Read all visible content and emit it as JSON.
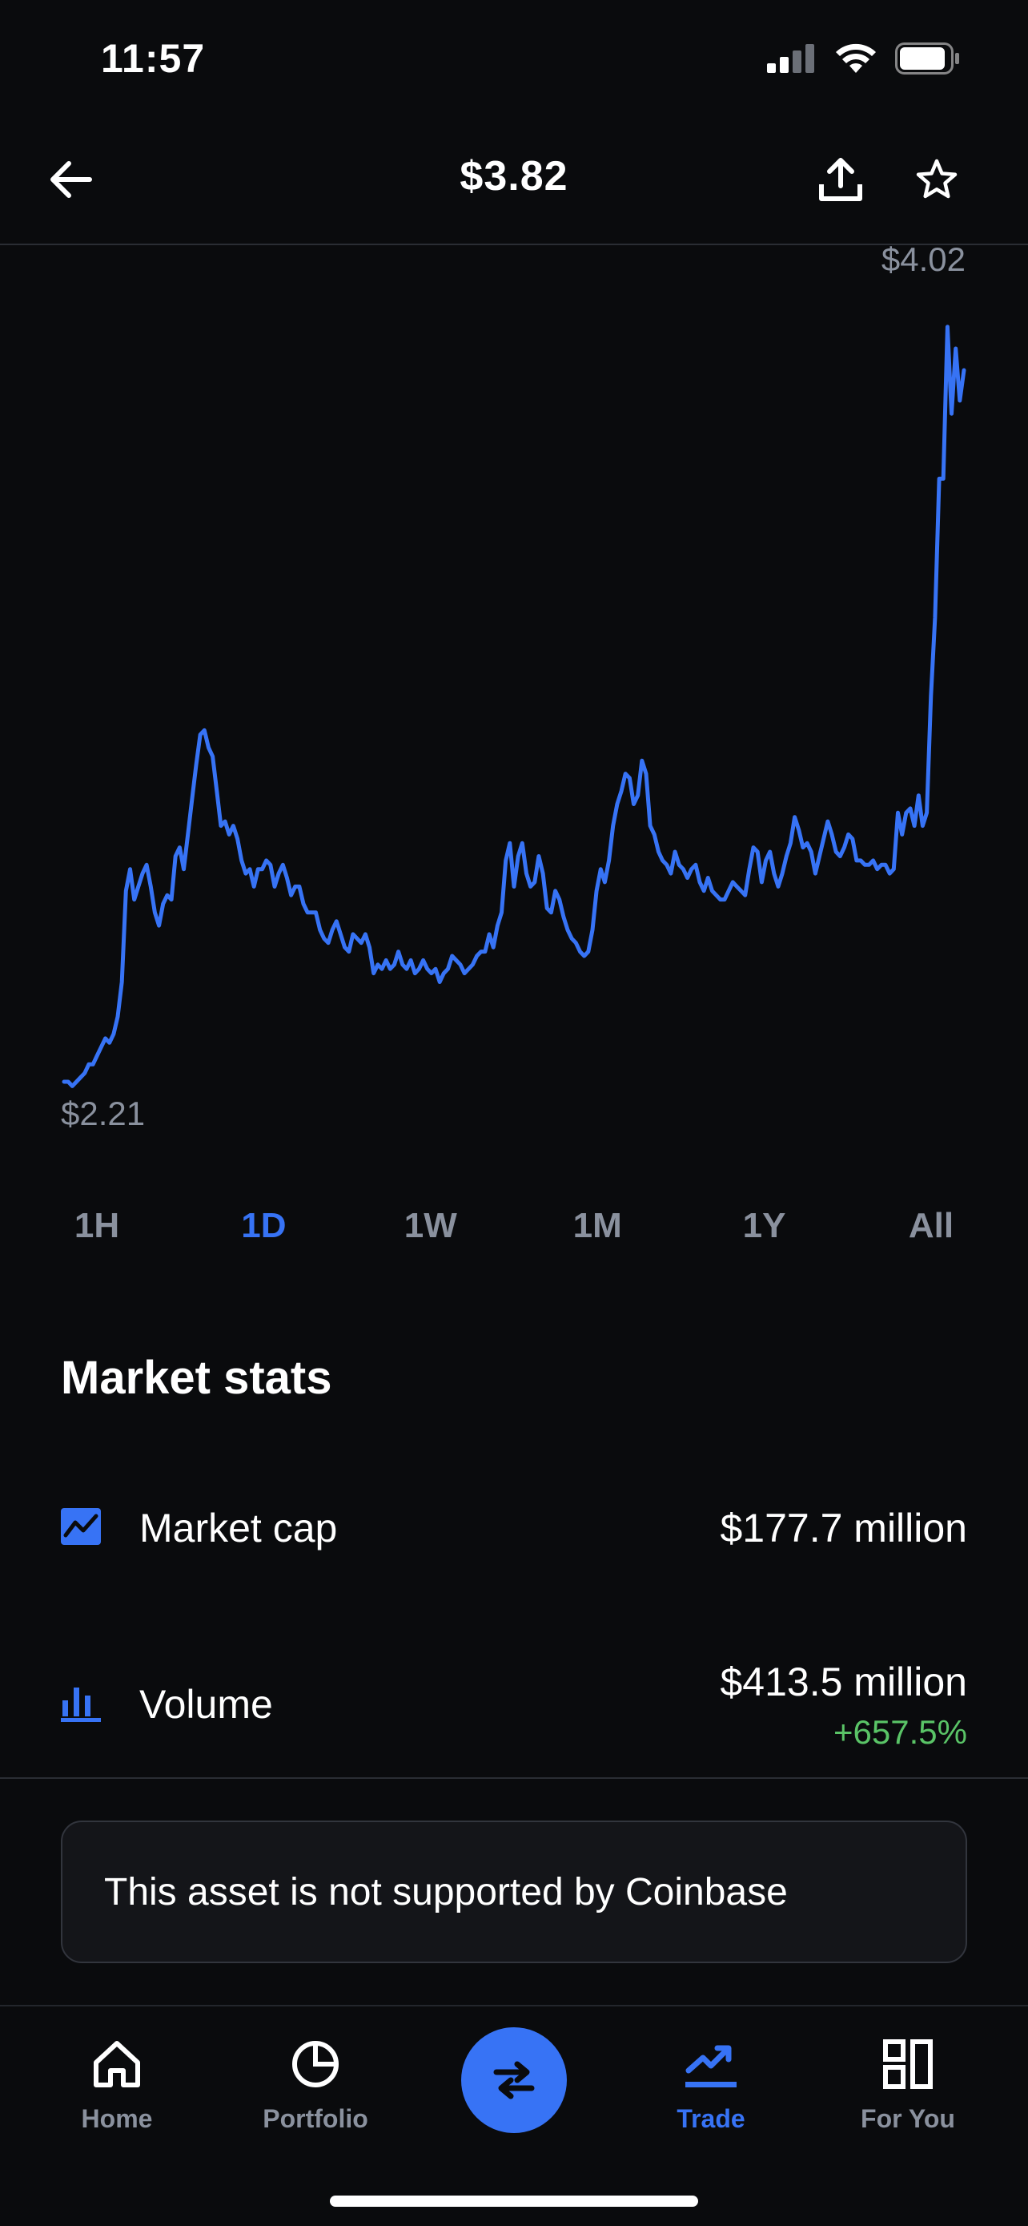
{
  "status_bar": {
    "time": "11:57",
    "icons": [
      "signal-icon",
      "wifi-icon",
      "battery-icon"
    ]
  },
  "header": {
    "price": "$3.82",
    "icons": [
      "back-arrow-icon",
      "share-icon",
      "star-icon"
    ]
  },
  "chart_data": {
    "type": "line",
    "high_label": "$4.02",
    "low_label": "$2.21",
    "ylim": [
      2.21,
      4.02
    ],
    "color": "#3773f5",
    "y": [
      2.21,
      2.21,
      2.2,
      2.21,
      2.22,
      2.23,
      2.25,
      2.25,
      2.27,
      2.29,
      2.31,
      2.3,
      2.32,
      2.36,
      2.44,
      2.65,
      2.7,
      2.63,
      2.66,
      2.69,
      2.71,
      2.66,
      2.6,
      2.57,
      2.62,
      2.64,
      2.63,
      2.73,
      2.75,
      2.7,
      2.78,
      2.86,
      2.94,
      3.01,
      3.02,
      2.98,
      2.96,
      2.88,
      2.8,
      2.81,
      2.78,
      2.8,
      2.77,
      2.72,
      2.69,
      2.7,
      2.66,
      2.7,
      2.7,
      2.72,
      2.71,
      2.66,
      2.69,
      2.71,
      2.68,
      2.64,
      2.66,
      2.66,
      2.62,
      2.6,
      2.6,
      2.6,
      2.56,
      2.54,
      2.53,
      2.56,
      2.58,
      2.55,
      2.52,
      2.51,
      2.55,
      2.54,
      2.53,
      2.55,
      2.52,
      2.46,
      2.48,
      2.47,
      2.49,
      2.47,
      2.48,
      2.51,
      2.48,
      2.47,
      2.49,
      2.46,
      2.47,
      2.49,
      2.47,
      2.46,
      2.47,
      2.44,
      2.46,
      2.47,
      2.5,
      2.49,
      2.48,
      2.46,
      2.47,
      2.48,
      2.5,
      2.51,
      2.51,
      2.55,
      2.52,
      2.57,
      2.6,
      2.72,
      2.76,
      2.66,
      2.73,
      2.76,
      2.69,
      2.66,
      2.67,
      2.73,
      2.69,
      2.61,
      2.6,
      2.65,
      2.63,
      2.59,
      2.56,
      2.54,
      2.53,
      2.51,
      2.5,
      2.51,
      2.56,
      2.65,
      2.7,
      2.67,
      2.72,
      2.8,
      2.85,
      2.88,
      2.92,
      2.91,
      2.85,
      2.87,
      2.95,
      2.92,
      2.8,
      2.78,
      2.74,
      2.72,
      2.71,
      2.69,
      2.74,
      2.71,
      2.7,
      2.68,
      2.7,
      2.71,
      2.67,
      2.65,
      2.68,
      2.65,
      2.64,
      2.63,
      2.63,
      2.65,
      2.67,
      2.66,
      2.65,
      2.64,
      2.7,
      2.75,
      2.74,
      2.67,
      2.72,
      2.74,
      2.69,
      2.66,
      2.69,
      2.73,
      2.76,
      2.82,
      2.79,
      2.75,
      2.76,
      2.74,
      2.69,
      2.73,
      2.77,
      2.81,
      2.78,
      2.74,
      2.73,
      2.75,
      2.78,
      2.77,
      2.72,
      2.72,
      2.71,
      2.71,
      2.72,
      2.7,
      2.71,
      2.71,
      2.69,
      2.7,
      2.83,
      2.78,
      2.83,
      2.84,
      2.8,
      2.87,
      2.8,
      2.83,
      3.1,
      3.28,
      3.6,
      3.6,
      3.95,
      3.75,
      3.9,
      3.78,
      3.85
    ],
    "range_selected": "1D"
  },
  "ranges": [
    "1H",
    "1D",
    "1W",
    "1M",
    "1Y",
    "All"
  ],
  "market_stats": {
    "title": "Market stats",
    "market_cap": {
      "label": "Market cap",
      "value": "$177.7 million"
    },
    "volume": {
      "label": "Volume",
      "value": "$413.5 million",
      "change": "+657.5%"
    }
  },
  "notice": "This asset is not supported by Coinbase",
  "nav": {
    "home": "Home",
    "portfolio": "Portfolio",
    "trade": "Trade",
    "for_you": "For You"
  },
  "colors": {
    "accent": "#3773f5",
    "positive": "#5ac467",
    "muted": "#8a919e",
    "background": "#0a0b0d"
  }
}
